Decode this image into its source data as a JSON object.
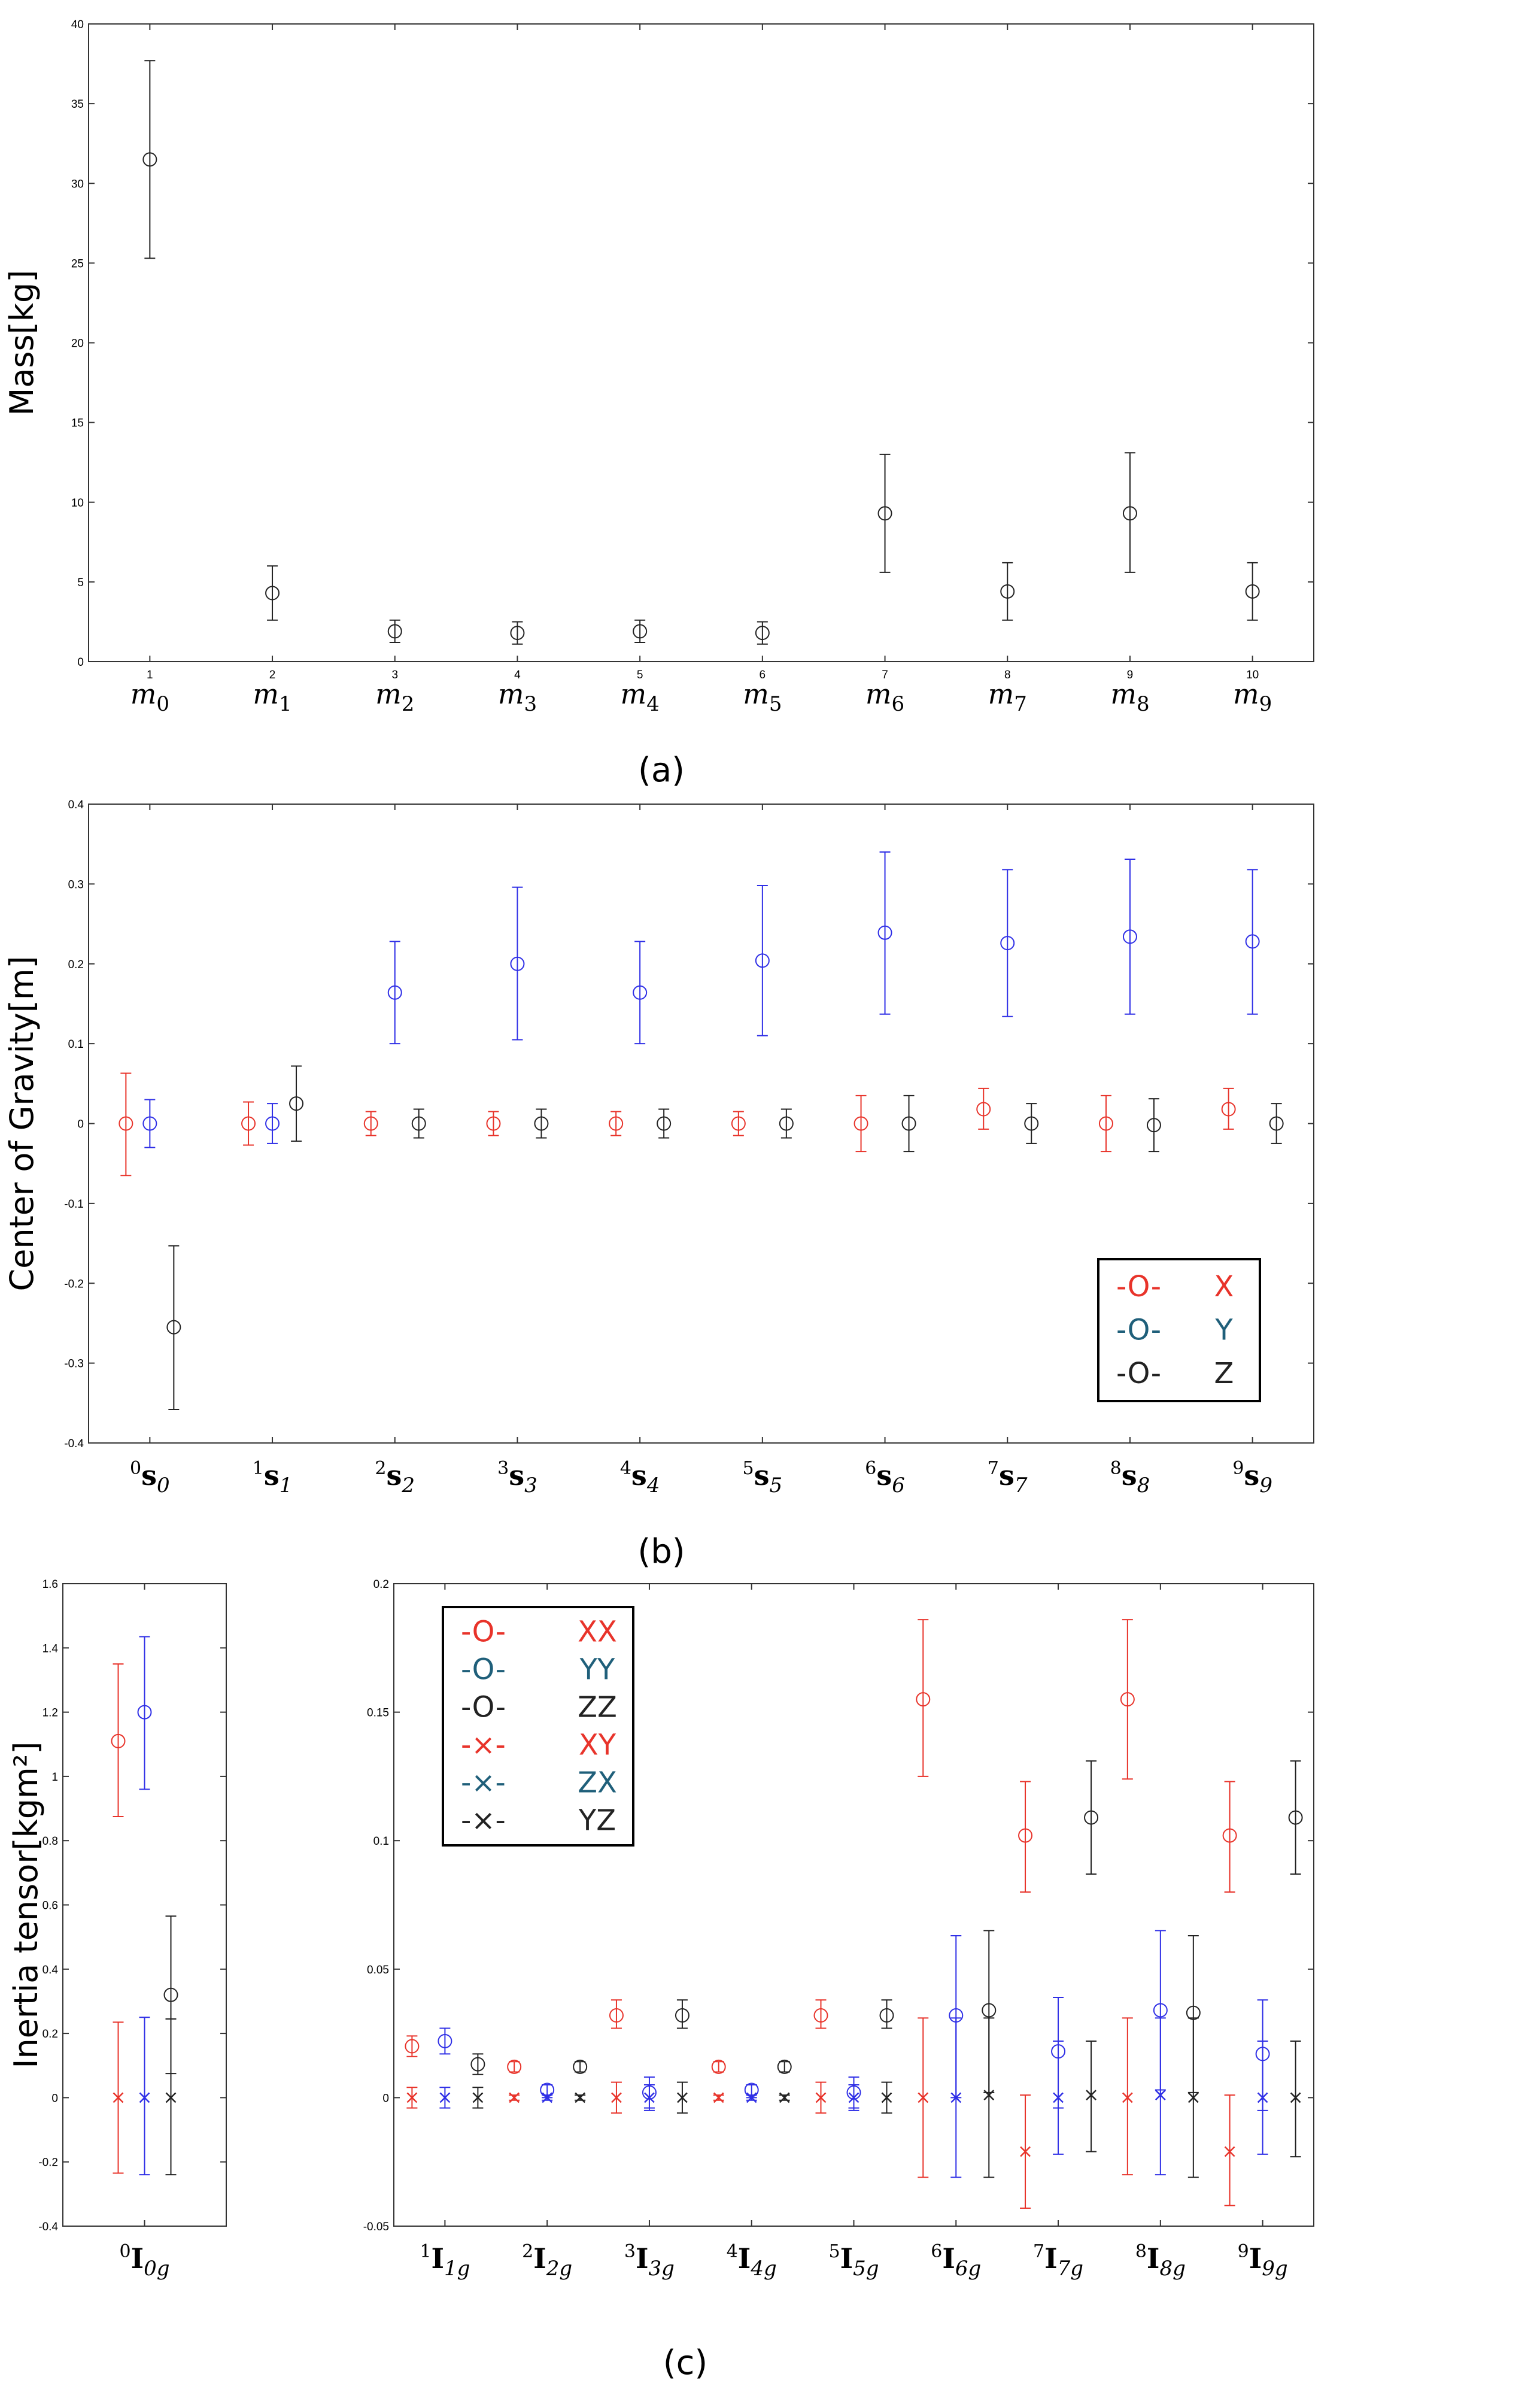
{
  "colors": {
    "x": "#e8332a",
    "y": "#2f2fe6",
    "z": "#222222",
    "legend_y": "#1f5f7a"
  },
  "panel_labels": {
    "a": "(a)",
    "b": "(b)",
    "c": "(c)"
  },
  "chart_data": [
    {
      "id": "a",
      "type": "scatter",
      "ylabel": "Mass[kg]",
      "ylim": [
        0,
        40
      ],
      "yticks": [
        "0",
        "5",
        "10",
        "15",
        "20",
        "25",
        "30",
        "35",
        "40"
      ],
      "categories": [
        {
          "base": "m",
          "sub": "0",
          "sup": "",
          "num": "1"
        },
        {
          "base": "m",
          "sub": "1",
          "sup": "",
          "num": "2"
        },
        {
          "base": "m",
          "sub": "2",
          "sup": "",
          "num": "3"
        },
        {
          "base": "m",
          "sub": "3",
          "sup": "",
          "num": "4"
        },
        {
          "base": "m",
          "sub": "4",
          "sup": "",
          "num": "5"
        },
        {
          "base": "m",
          "sub": "5",
          "sup": "",
          "num": "6"
        },
        {
          "base": "m",
          "sub": "6",
          "sup": "",
          "num": "7"
        },
        {
          "base": "m",
          "sub": "7",
          "sup": "",
          "num": "8"
        },
        {
          "base": "m",
          "sub": "8",
          "sup": "",
          "num": "9"
        },
        {
          "base": "m",
          "sub": "9",
          "sup": "",
          "num": "10"
        }
      ],
      "series": [
        {
          "name": "Mass",
          "color": "z",
          "marker": "o",
          "values": [
            31.5,
            4.3,
            1.9,
            1.8,
            1.9,
            1.8,
            9.3,
            4.4,
            9.3,
            4.4
          ],
          "lo": [
            25.3,
            2.6,
            1.2,
            1.1,
            1.2,
            1.1,
            5.6,
            2.6,
            5.6,
            2.6
          ],
          "hi": [
            37.7,
            6.0,
            2.6,
            2.5,
            2.6,
            2.5,
            13.0,
            6.2,
            13.1,
            6.2
          ]
        }
      ]
    },
    {
      "id": "b",
      "type": "scatter",
      "ylabel": "Center of Gravity[m]",
      "ylim": [
        -0.4,
        0.4
      ],
      "yticks": [
        "-0.4",
        "-0.3",
        "-0.2",
        "-0.1",
        "0",
        "0.1",
        "0.2",
        "0.3",
        "0.4"
      ],
      "categories": [
        {
          "base": "s",
          "sub": "0",
          "sup": "0"
        },
        {
          "base": "s",
          "sub": "1",
          "sup": "1"
        },
        {
          "base": "s",
          "sub": "2",
          "sup": "2"
        },
        {
          "base": "s",
          "sub": "3",
          "sup": "3"
        },
        {
          "base": "s",
          "sub": "4",
          "sup": "4"
        },
        {
          "base": "s",
          "sub": "5",
          "sup": "5"
        },
        {
          "base": "s",
          "sub": "6",
          "sup": "6"
        },
        {
          "base": "s",
          "sub": "7",
          "sup": "7"
        },
        {
          "base": "s",
          "sub": "8",
          "sup": "8"
        },
        {
          "base": "s",
          "sub": "9",
          "sup": "9"
        }
      ],
      "legend": [
        {
          "label": "X",
          "sample": "-O-",
          "color": "x"
        },
        {
          "label": "Y",
          "sample": "-O-",
          "color": "legend_y"
        },
        {
          "label": "Z",
          "sample": "-O-",
          "color": "z"
        }
      ],
      "series": [
        {
          "name": "X",
          "color": "x",
          "marker": "o",
          "values": [
            0.0,
            0.0,
            0.0,
            0.0,
            0.0,
            0.0,
            0.0,
            0.018,
            0.0,
            0.018
          ],
          "lo": [
            -0.065,
            -0.027,
            -0.015,
            -0.015,
            -0.015,
            -0.015,
            -0.035,
            -0.007,
            -0.035,
            -0.007
          ],
          "hi": [
            0.063,
            0.027,
            0.015,
            0.015,
            0.015,
            0.015,
            0.035,
            0.044,
            0.035,
            0.044
          ]
        },
        {
          "name": "Y",
          "color": "y",
          "marker": "o",
          "values": [
            0.0,
            0.0,
            0.164,
            0.2,
            0.164,
            0.204,
            0.239,
            0.226,
            0.234,
            0.228
          ],
          "lo": [
            -0.03,
            -0.025,
            0.1,
            0.105,
            0.1,
            0.11,
            0.137,
            0.134,
            0.137,
            0.137
          ],
          "hi": [
            0.03,
            0.025,
            0.228,
            0.296,
            0.228,
            0.298,
            0.34,
            0.318,
            0.331,
            0.318
          ]
        },
        {
          "name": "Z",
          "color": "z",
          "marker": "o",
          "values": [
            -0.255,
            0.025,
            0.0,
            0.0,
            0.0,
            0.0,
            0.0,
            0.0,
            -0.002,
            0.0
          ],
          "lo": [
            -0.358,
            -0.022,
            -0.018,
            -0.018,
            -0.018,
            -0.018,
            -0.035,
            -0.025,
            -0.035,
            -0.025
          ],
          "hi": [
            -0.153,
            0.072,
            0.018,
            0.018,
            0.018,
            0.018,
            0.035,
            0.025,
            0.031,
            0.025
          ]
        }
      ]
    },
    {
      "id": "c_left",
      "type": "scatter",
      "ylabel": "Inertia tensor[kgm²]",
      "ylim": [
        -0.4,
        1.6
      ],
      "yticks": [
        "-0.4",
        "-0.2",
        "0",
        "0.2",
        "0.4",
        "0.6",
        "0.8",
        "1",
        "1.2",
        "1.4",
        "1.6"
      ],
      "categories": [
        {
          "base": "I",
          "sub": "0g",
          "sup": "0"
        }
      ],
      "series": [
        {
          "name": "XX",
          "color": "x",
          "marker": "o",
          "values": [
            1.11
          ],
          "lo": [
            0.875
          ],
          "hi": [
            1.35
          ]
        },
        {
          "name": "YY",
          "color": "y",
          "marker": "o",
          "values": [
            1.2
          ],
          "lo": [
            0.96
          ],
          "hi": [
            1.435
          ]
        },
        {
          "name": "ZZ",
          "color": "z",
          "marker": "o",
          "values": [
            0.32
          ],
          "lo": [
            0.075
          ],
          "hi": [
            0.565
          ]
        },
        {
          "name": "XY",
          "color": "x",
          "marker": "x",
          "values": [
            0.0
          ],
          "lo": [
            -0.235
          ],
          "hi": [
            0.235
          ]
        },
        {
          "name": "ZX",
          "color": "y",
          "marker": "x",
          "values": [
            0.0
          ],
          "lo": [
            -0.24
          ],
          "hi": [
            0.25
          ]
        },
        {
          "name": "YZ",
          "color": "z",
          "marker": "x",
          "values": [
            0.0
          ],
          "lo": [
            -0.24
          ],
          "hi": [
            0.245
          ]
        }
      ]
    },
    {
      "id": "c_right",
      "type": "scatter",
      "ylim": [
        -0.05,
        0.2
      ],
      "yticks": [
        "-0.05",
        "0",
        "0.05",
        "0.1",
        "0.15",
        "0.2"
      ],
      "categories": [
        {
          "base": "I",
          "sub": "1g",
          "sup": "1"
        },
        {
          "base": "I",
          "sub": "2g",
          "sup": "2"
        },
        {
          "base": "I",
          "sub": "3g",
          "sup": "3"
        },
        {
          "base": "I",
          "sub": "4g",
          "sup": "4"
        },
        {
          "base": "I",
          "sub": "5g",
          "sup": "5"
        },
        {
          "base": "I",
          "sub": "6g",
          "sup": "6"
        },
        {
          "base": "I",
          "sub": "7g",
          "sup": "7"
        },
        {
          "base": "I",
          "sub": "8g",
          "sup": "8"
        },
        {
          "base": "I",
          "sub": "9g",
          "sup": "9"
        }
      ],
      "legend": [
        {
          "label": "XX",
          "sample": "-O-",
          "color": "x"
        },
        {
          "label": "YY",
          "sample": "-O-",
          "color": "legend_y"
        },
        {
          "label": "ZZ",
          "sample": "-O-",
          "color": "z"
        },
        {
          "label": "XY",
          "sample": "-×-",
          "color": "x"
        },
        {
          "label": "ZX",
          "sample": "-×-",
          "color": "legend_y"
        },
        {
          "label": "YZ",
          "sample": "-×-",
          "color": "z"
        }
      ],
      "series": [
        {
          "name": "XX",
          "color": "x",
          "marker": "o",
          "values": [
            0.02,
            0.012,
            0.032,
            0.012,
            0.032,
            0.155,
            0.102,
            0.155,
            0.102
          ],
          "lo": [
            0.016,
            0.01,
            0.027,
            0.01,
            0.027,
            0.125,
            0.08,
            0.124,
            0.08
          ],
          "hi": [
            0.024,
            0.014,
            0.038,
            0.014,
            0.038,
            0.186,
            0.123,
            0.186,
            0.123
          ]
        },
        {
          "name": "YY",
          "color": "y",
          "marker": "o",
          "values": [
            0.022,
            0.003,
            0.002,
            0.003,
            0.002,
            0.032,
            0.018,
            0.034,
            0.017
          ],
          "lo": [
            0.017,
            0.0,
            -0.004,
            0.0,
            -0.004,
            0.0,
            -0.004,
            0.003,
            -0.005
          ],
          "hi": [
            0.027,
            0.005,
            0.008,
            0.005,
            0.008,
            0.063,
            0.039,
            0.065,
            0.038
          ]
        },
        {
          "name": "ZZ",
          "color": "z",
          "marker": "o",
          "values": [
            0.013,
            0.012,
            0.032,
            0.012,
            0.032,
            0.034,
            0.109,
            0.033,
            0.109
          ],
          "lo": [
            0.009,
            0.01,
            0.027,
            0.01,
            0.027,
            0.002,
            0.087,
            0.002,
            0.087
          ],
          "hi": [
            0.017,
            0.014,
            0.038,
            0.014,
            0.038,
            0.065,
            0.131,
            0.063,
            0.131
          ]
        },
        {
          "name": "XY",
          "color": "x",
          "marker": "x",
          "values": [
            0.0,
            0.0,
            0.0,
            0.0,
            0.0,
            0.0,
            -0.021,
            0.0,
            -0.021
          ],
          "lo": [
            -0.004,
            -0.001,
            -0.006,
            -0.001,
            -0.006,
            -0.031,
            -0.043,
            -0.03,
            -0.042
          ],
          "hi": [
            0.004,
            0.001,
            0.006,
            0.001,
            0.006,
            0.031,
            0.001,
            0.031,
            0.001
          ]
        },
        {
          "name": "ZX",
          "color": "y",
          "marker": "x",
          "values": [
            0.0,
            0.0,
            0.0,
            0.0,
            0.0,
            0.0,
            0.0,
            0.001,
            0.0
          ],
          "lo": [
            -0.004,
            -0.001,
            -0.005,
            -0.001,
            -0.005,
            -0.031,
            -0.022,
            -0.03,
            -0.022
          ],
          "hi": [
            0.004,
            0.001,
            0.005,
            0.001,
            0.005,
            0.031,
            0.022,
            0.031,
            0.022
          ]
        },
        {
          "name": "YZ",
          "color": "z",
          "marker": "x",
          "values": [
            0.0,
            0.0,
            0.0,
            0.0,
            0.0,
            0.001,
            0.001,
            0.0,
            0.0
          ],
          "lo": [
            -0.004,
            -0.001,
            -0.006,
            -0.001,
            -0.006,
            -0.031,
            -0.021,
            -0.031,
            -0.023
          ],
          "hi": [
            0.004,
            0.001,
            0.006,
            0.001,
            0.006,
            0.031,
            0.022,
            0.031,
            0.022
          ]
        }
      ]
    }
  ]
}
